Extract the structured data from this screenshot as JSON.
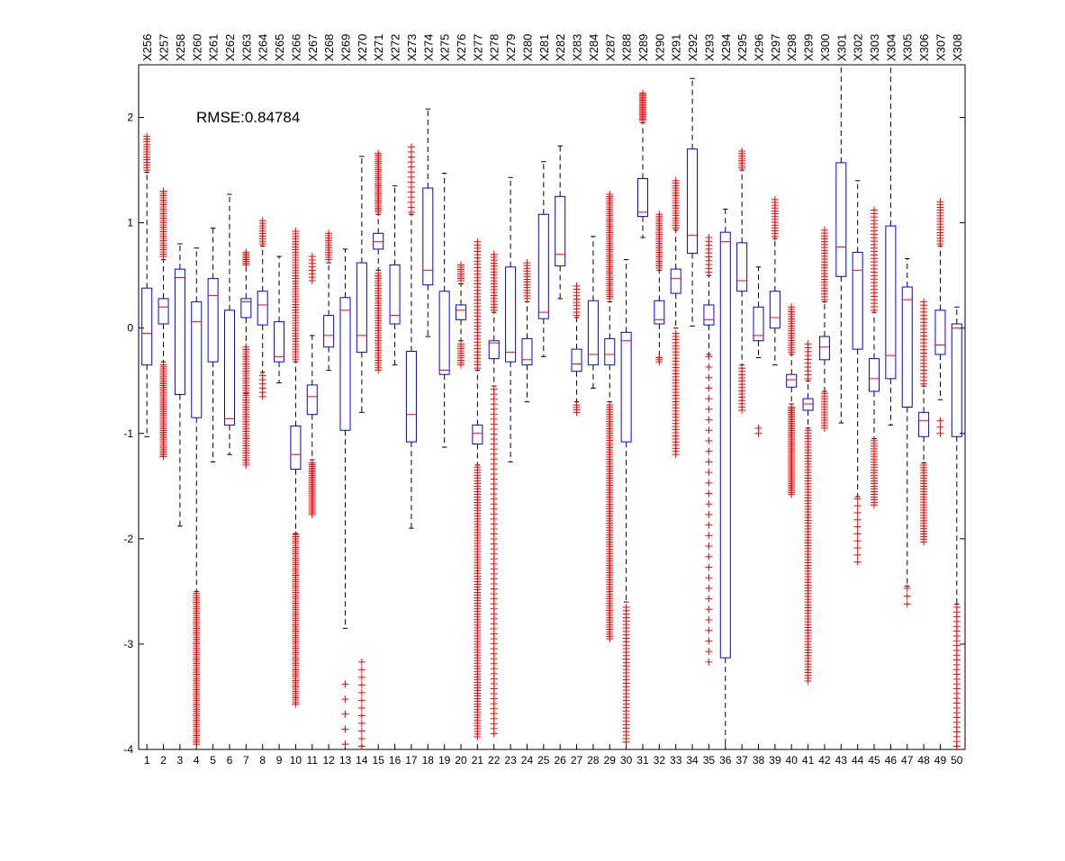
{
  "chart_data": {
    "type": "boxplot",
    "annotation": "RMSE:0.84784",
    "ylim": [
      -4,
      2.5
    ],
    "yticks": [
      -4,
      -3,
      -2,
      -1,
      0,
      1,
      2
    ],
    "ytick_labels": [
      "-4",
      "-3",
      "-2",
      "-1",
      "0",
      "1",
      "2"
    ],
    "categories": [
      "1",
      "2",
      "3",
      "4",
      "5",
      "6",
      "7",
      "8",
      "9",
      "10",
      "11",
      "12",
      "13",
      "14",
      "15",
      "16",
      "17",
      "18",
      "19",
      "20",
      "21",
      "22",
      "23",
      "24",
      "25",
      "26",
      "27",
      "28",
      "29",
      "30",
      "31",
      "32",
      "33",
      "34",
      "35",
      "36",
      "37",
      "38",
      "39",
      "40",
      "41",
      "42",
      "43",
      "44",
      "45",
      "46",
      "47",
      "48",
      "49",
      "50"
    ],
    "top_labels": [
      "X256",
      "X257",
      "X258",
      "X260",
      "X261",
      "X262",
      "X263",
      "X264",
      "X265",
      "X266",
      "X267",
      "X268",
      "X269",
      "X270",
      "X271",
      "X272",
      "X273",
      "X274",
      "X275",
      "X276",
      "X277",
      "X278",
      "X279",
      "X280",
      "X281",
      "X282",
      "X283",
      "X284",
      "X287",
      "X288",
      "X289",
      "X290",
      "X291",
      "X292",
      "X293",
      "X294",
      "X295",
      "X296",
      "X297",
      "X298",
      "X299",
      "X300",
      "X301",
      "X302",
      "X303",
      "X304",
      "X305",
      "X306",
      "X307",
      "X308"
    ],
    "colors": {
      "box": "#0000ff",
      "median": "#ff0000",
      "whisker": "#000000",
      "outlier": "#ff0000"
    },
    "boxes": [
      {
        "min": -1.03,
        "q1": -0.35,
        "median": -0.05,
        "q3": 0.38,
        "max": 1.48,
        "outliers": [
          [
            1.5,
            1.82,
            14
          ]
        ]
      },
      {
        "min": -0.32,
        "q1": 0.04,
        "median": 0.2,
        "q3": 0.28,
        "max": 0.65,
        "outliers": [
          [
            -1.22,
            -0.35,
            50
          ],
          [
            0.68,
            1.3,
            30
          ]
        ]
      },
      {
        "min": -1.88,
        "q1": -0.63,
        "median": 0.48,
        "q3": 0.56,
        "max": 0.8,
        "outliers": []
      },
      {
        "min": -2.5,
        "q1": -0.85,
        "median": 0.06,
        "q3": 0.25,
        "max": 0.76,
        "outliers": [
          [
            -3.95,
            -2.52,
            70
          ]
        ]
      },
      {
        "min": -1.27,
        "q1": -0.32,
        "median": 0.31,
        "q3": 0.47,
        "max": 0.95,
        "outliers": []
      },
      {
        "min": -1.2,
        "q1": -0.92,
        "median": -0.86,
        "q3": 0.17,
        "max": 1.27,
        "outliers": []
      },
      {
        "min": -0.62,
        "q1": 0.1,
        "median": 0.25,
        "q3": 0.28,
        "max": 0.65,
        "outliers": [
          [
            -1.3,
            -0.18,
            50
          ],
          [
            0.6,
            0.72,
            8
          ]
        ]
      },
      {
        "min": -0.42,
        "q1": 0.03,
        "median": 0.22,
        "q3": 0.35,
        "max": 0.78,
        "outliers": [
          [
            -0.65,
            -0.45,
            6
          ],
          [
            0.8,
            1.02,
            10
          ]
        ]
      },
      {
        "min": -0.52,
        "q1": -0.32,
        "median": -0.27,
        "q3": 0.06,
        "max": 0.68,
        "outliers": []
      },
      {
        "min": -1.95,
        "q1": -1.34,
        "median": -1.2,
        "q3": -0.93,
        "max": -0.32,
        "outliers": [
          [
            -3.57,
            -1.96,
            80
          ],
          [
            -0.3,
            0.92,
            50
          ]
        ]
      },
      {
        "min": -1.25,
        "q1": -0.82,
        "median": -0.65,
        "q3": -0.54,
        "max": -0.07,
        "outliers": [
          [
            -1.77,
            -1.28,
            30
          ],
          [
            0.45,
            0.68,
            8
          ]
        ]
      },
      {
        "min": -0.4,
        "q1": -0.18,
        "median": -0.07,
        "q3": 0.12,
        "max": 0.62,
        "outliers": [
          [
            0.65,
            0.9,
            12
          ]
        ]
      },
      {
        "min": -2.85,
        "q1": -0.97,
        "median": 0.17,
        "q3": 0.29,
        "max": 0.75,
        "outliers": [
          [
            -3.95,
            -3.38,
            5
          ]
        ]
      },
      {
        "min": -0.8,
        "q1": -0.23,
        "median": -0.07,
        "q3": 0.62,
        "max": 1.63,
        "outliers": [
          [
            -3.97,
            -3.17,
            12
          ]
        ]
      },
      {
        "min": 0.55,
        "q1": 0.75,
        "median": 0.82,
        "q3": 0.9,
        "max": 1.08,
        "outliers": [
          [
            -0.4,
            0.52,
            40
          ],
          [
            1.1,
            1.66,
            30
          ]
        ]
      },
      {
        "min": -0.35,
        "q1": 0.04,
        "median": 0.12,
        "q3": 0.6,
        "max": 1.35,
        "outliers": []
      },
      {
        "min": -1.9,
        "q1": -1.08,
        "median": -0.82,
        "q3": -0.22,
        "max": 1.08,
        "outliers": [
          [
            1.1,
            1.72,
            14
          ]
        ]
      },
      {
        "min": -0.08,
        "q1": 0.41,
        "median": 0.55,
        "q3": 1.33,
        "max": 2.08,
        "outliers": []
      },
      {
        "min": -1.13,
        "q1": -0.44,
        "median": -0.4,
        "q3": 0.35,
        "max": 1.47,
        "outliers": []
      },
      {
        "min": -0.12,
        "q1": 0.08,
        "median": 0.17,
        "q3": 0.22,
        "max": 0.42,
        "outliers": [
          [
            -0.35,
            -0.15,
            10
          ],
          [
            0.45,
            0.6,
            8
          ]
        ]
      },
      {
        "min": -1.3,
        "q1": -1.1,
        "median": -1.0,
        "q3": -0.92,
        "max": -0.4,
        "outliers": [
          [
            -3.88,
            -1.32,
            100
          ],
          [
            -0.38,
            0.82,
            40
          ]
        ]
      },
      {
        "min": -0.55,
        "q1": -0.29,
        "median": -0.14,
        "q3": -0.12,
        "max": 0.15,
        "outliers": [
          [
            -3.85,
            -0.58,
            70
          ],
          [
            0.17,
            0.7,
            20
          ]
        ]
      },
      {
        "min": -1.27,
        "q1": -0.32,
        "median": -0.23,
        "q3": 0.58,
        "max": 1.43,
        "outliers": []
      },
      {
        "min": -0.7,
        "q1": -0.35,
        "median": -0.3,
        "q3": -0.1,
        "max": 0.25,
        "outliers": [
          [
            0.28,
            0.62,
            14
          ]
        ]
      },
      {
        "min": -0.27,
        "q1": 0.09,
        "median": 0.15,
        "q3": 1.08,
        "max": 1.58,
        "outliers": []
      },
      {
        "min": 0.28,
        "q1": 0.59,
        "median": 0.7,
        "q3": 1.25,
        "max": 1.73,
        "outliers": []
      },
      {
        "min": -0.7,
        "q1": -0.41,
        "median": -0.34,
        "q3": -0.2,
        "max": 0.1,
        "outliers": [
          [
            -0.8,
            -0.73,
            4
          ],
          [
            0.12,
            0.4,
            10
          ]
        ]
      },
      {
        "min": -0.57,
        "q1": -0.35,
        "median": -0.25,
        "q3": 0.26,
        "max": 0.87,
        "outliers": []
      },
      {
        "min": -0.7,
        "q1": -0.35,
        "median": -0.25,
        "q3": -0.1,
        "max": 0.25,
        "outliers": [
          [
            -2.95,
            -0.73,
            100
          ],
          [
            0.28,
            1.27,
            50
          ]
        ]
      },
      {
        "min": -2.6,
        "q1": -1.08,
        "median": -0.12,
        "q3": -0.04,
        "max": 0.65,
        "outliers": [
          [
            -3.93,
            -2.65,
            40
          ]
        ]
      },
      {
        "min": 0.86,
        "q1": 1.06,
        "median": 1.1,
        "q3": 1.42,
        "max": 1.95,
        "outliers": [
          [
            1.97,
            2.23,
            20
          ]
        ]
      },
      {
        "min": -0.28,
        "q1": 0.04,
        "median": 0.08,
        "q3": 0.26,
        "max": 0.55,
        "outliers": [
          [
            -0.32,
            -0.28,
            3
          ],
          [
            0.57,
            1.08,
            25
          ]
        ]
      },
      {
        "min": 0.0,
        "q1": 0.33,
        "median": 0.47,
        "q3": 0.56,
        "max": 0.93,
        "outliers": [
          [
            -1.2,
            -0.05,
            40
          ],
          [
            0.95,
            1.4,
            20
          ]
        ]
      },
      {
        "min": 0.02,
        "q1": 0.71,
        "median": 0.88,
        "q3": 1.7,
        "max": 2.37,
        "outliers": []
      },
      {
        "min": -0.25,
        "q1": 0.03,
        "median": 0.08,
        "q3": 0.22,
        "max": 0.5,
        "outliers": [
          [
            -3.17,
            -0.27,
            30
          ],
          [
            0.53,
            0.86,
            10
          ]
        ]
      },
      {
        "min": -4.0,
        "q1": -3.13,
        "median": 0.82,
        "q3": 0.91,
        "max": 1.13,
        "outliers": []
      },
      {
        "min": -0.35,
        "q1": 0.35,
        "median": 0.45,
        "q3": 0.81,
        "max": 1.5,
        "outliers": [
          [
            -0.78,
            -0.38,
            14
          ],
          [
            1.52,
            1.68,
            8
          ]
        ]
      },
      {
        "min": -0.28,
        "q1": -0.12,
        "median": -0.07,
        "q3": 0.2,
        "max": 0.58,
        "outliers": [
          [
            -1.0,
            -0.95,
            2
          ]
        ]
      },
      {
        "min": -0.35,
        "q1": 0.0,
        "median": 0.1,
        "q3": 0.35,
        "max": 0.85,
        "outliers": [
          [
            0.87,
            1.22,
            14
          ]
        ]
      },
      {
        "min": -0.72,
        "q1": -0.56,
        "median": -0.49,
        "q3": -0.44,
        "max": -0.25,
        "outliers": [
          [
            -1.58,
            -0.75,
            50
          ],
          [
            -0.23,
            0.2,
            20
          ]
        ]
      },
      {
        "min": -0.95,
        "q1": -0.78,
        "median": -0.72,
        "q3": -0.67,
        "max": -0.5,
        "outliers": [
          [
            -3.35,
            -0.97,
            90
          ],
          [
            -0.48,
            -0.15,
            10
          ]
        ]
      },
      {
        "min": -0.6,
        "q1": -0.3,
        "median": -0.18,
        "q3": -0.08,
        "max": 0.25,
        "outliers": [
          [
            -0.95,
            -0.62,
            14
          ],
          [
            0.27,
            0.93,
            25
          ]
        ]
      },
      {
        "min": -0.9,
        "q1": 0.49,
        "median": 0.77,
        "q3": 1.57,
        "max": 2.5,
        "outliers": []
      },
      {
        "min": -1.6,
        "q1": -0.2,
        "median": 0.55,
        "q3": 0.72,
        "max": 1.4,
        "outliers": [
          [
            -2.22,
            -1.62,
            10
          ]
        ]
      },
      {
        "min": -1.05,
        "q1": -0.6,
        "median": -0.48,
        "q3": -0.29,
        "max": 0.15,
        "outliers": [
          [
            -1.68,
            -1.07,
            25
          ],
          [
            0.17,
            1.12,
            30
          ]
        ]
      },
      {
        "min": -0.92,
        "q1": -0.48,
        "median": -0.26,
        "q3": 0.97,
        "max": 2.5,
        "outliers": []
      },
      {
        "min": -2.45,
        "q1": -0.75,
        "median": 0.27,
        "q3": 0.39,
        "max": 0.66,
        "outliers": [
          [
            -2.62,
            -2.47,
            3
          ]
        ]
      },
      {
        "min": -1.28,
        "q1": -1.03,
        "median": -0.88,
        "q3": -0.8,
        "max": -0.55,
        "outliers": [
          [
            -2.03,
            -1.3,
            30
          ],
          [
            -0.53,
            0.25,
            25
          ]
        ]
      },
      {
        "min": -0.68,
        "q1": -0.25,
        "median": -0.16,
        "q3": 0.17,
        "max": 0.78,
        "outliers": [
          [
            -1.0,
            -0.88,
            3
          ],
          [
            0.8,
            1.2,
            16
          ]
        ]
      },
      {
        "min": -2.62,
        "q1": -1.03,
        "median": 0.0,
        "q3": 0.04,
        "max": 0.2,
        "outliers": [
          [
            -3.97,
            -2.65,
            30
          ]
        ]
      }
    ]
  }
}
